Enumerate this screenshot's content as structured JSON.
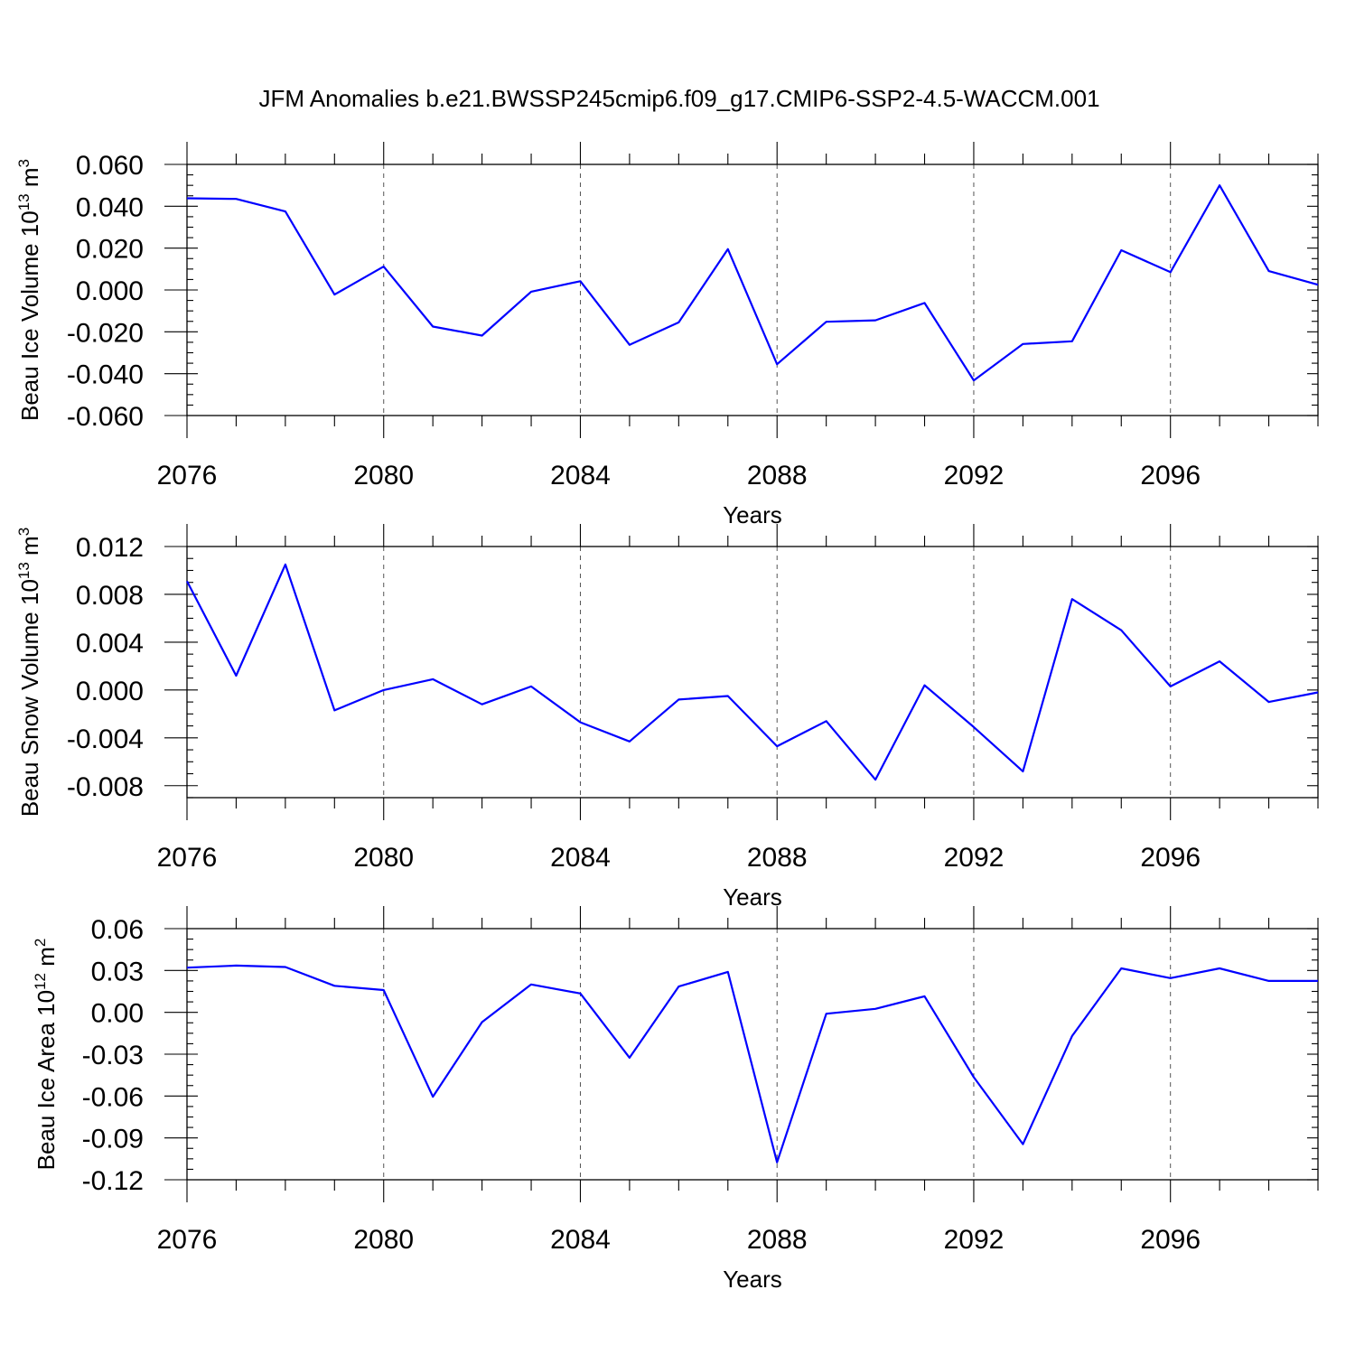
{
  "title": "JFM Anomalies b.e21.BWSSP245cmip6.f09_g17.CMIP6-SSP2-4.5-WACCM.001",
  "line_color": "#0000ff",
  "chart_data": [
    {
      "type": "line",
      "ylabel": "Beau Ice Volume",
      "ylabel_unit": {
        "base": "10",
        "exp": "13",
        "unit": "m",
        "unit_exp": "3"
      },
      "xlabel": "Years",
      "xlim": [
        2076,
        2099
      ],
      "ylim": [
        -0.06,
        0.06
      ],
      "x_ticks": [
        2076,
        2080,
        2084,
        2088,
        2092,
        2096
      ],
      "x_tick_labels": [
        "2076",
        "2080",
        "2084",
        "2088",
        "2092",
        "2096"
      ],
      "y_ticks": [
        -0.06,
        -0.04,
        -0.02,
        0.0,
        0.02,
        0.04,
        0.06
      ],
      "y_tick_labels": [
        "-0.060",
        "-0.040",
        "-0.020",
        "0.000",
        "0.020",
        "0.040",
        "0.060"
      ],
      "grid": "x-dashed",
      "series": [
        {
          "x": [
            2076,
            2077,
            2078,
            2079,
            2080,
            2081,
            2082,
            2083,
            2084,
            2085,
            2086,
            2087,
            2088,
            2089,
            2090,
            2091,
            2092,
            2093,
            2094,
            2095,
            2096,
            2097,
            2098,
            2099
          ],
          "values": [
            0.0438,
            0.0435,
            0.0375,
            -0.0022,
            0.0112,
            -0.0175,
            -0.0218,
            -0.0008,
            0.0042,
            -0.0262,
            -0.0155,
            0.0195,
            -0.0355,
            -0.0152,
            -0.0145,
            -0.0062,
            -0.0432,
            -0.0258,
            -0.0245,
            0.019,
            0.0085,
            0.05,
            0.009,
            0.0025
          ]
        }
      ]
    },
    {
      "type": "line",
      "ylabel": "Beau Snow Volume",
      "ylabel_unit": {
        "base": "10",
        "exp": "13",
        "unit": "m",
        "unit_exp": "3"
      },
      "xlabel": "Years",
      "xlim": [
        2076,
        2099
      ],
      "ylim": [
        -0.009,
        0.012
      ],
      "x_ticks": [
        2076,
        2080,
        2084,
        2088,
        2092,
        2096
      ],
      "x_tick_labels": [
        "2076",
        "2080",
        "2084",
        "2088",
        "2092",
        "2096"
      ],
      "y_ticks": [
        -0.008,
        -0.004,
        0.0,
        0.004,
        0.008,
        0.012
      ],
      "y_tick_labels": [
        "-0.008",
        "-0.004",
        "0.000",
        "0.004",
        "0.008",
        "0.012"
      ],
      "grid": "x-dashed",
      "series": [
        {
          "x": [
            2076,
            2077,
            2078,
            2079,
            2080,
            2081,
            2082,
            2083,
            2084,
            2085,
            2086,
            2087,
            2088,
            2089,
            2090,
            2091,
            2092,
            2093,
            2094,
            2095,
            2096,
            2097,
            2098,
            2099
          ],
          "values": [
            0.0091,
            0.0012,
            0.0105,
            -0.0017,
            -0.0,
            0.0009,
            -0.0012,
            0.0003,
            -0.0027,
            -0.0043,
            -0.0008,
            -0.0005,
            -0.0047,
            -0.0026,
            -0.0075,
            0.0004,
            -0.0031,
            -0.0068,
            0.0076,
            0.005,
            0.0003,
            0.0024,
            -0.001,
            -0.0002
          ]
        }
      ]
    },
    {
      "type": "line",
      "ylabel": "Beau Ice Area",
      "ylabel_unit": {
        "base": "10",
        "exp": "12",
        "unit": "m",
        "unit_exp": "2"
      },
      "xlabel": "Years",
      "xlim": [
        2076,
        2099
      ],
      "ylim": [
        -0.12,
        0.06
      ],
      "x_ticks": [
        2076,
        2080,
        2084,
        2088,
        2092,
        2096
      ],
      "x_tick_labels": [
        "2076",
        "2080",
        "2084",
        "2088",
        "2092",
        "2096"
      ],
      "y_ticks": [
        -0.12,
        -0.09,
        -0.06,
        -0.03,
        0.0,
        0.03,
        0.06
      ],
      "y_tick_labels": [
        "-0.12",
        "-0.09",
        "-0.06",
        "-0.03",
        "0.00",
        "0.03",
        "0.06"
      ],
      "grid": "x-dashed",
      "series": [
        {
          "x": [
            2076,
            2077,
            2078,
            2079,
            2080,
            2081,
            2082,
            2083,
            2084,
            2085,
            2086,
            2087,
            2088,
            2089,
            2090,
            2091,
            2092,
            2093,
            2094,
            2095,
            2096,
            2097,
            2098,
            2099
          ],
          "values": [
            0.032,
            0.0335,
            0.0325,
            0.019,
            0.016,
            -0.0605,
            -0.007,
            0.02,
            0.0135,
            -0.0325,
            0.0185,
            0.029,
            -0.1075,
            -0.001,
            0.0025,
            0.0115,
            -0.0465,
            -0.0945,
            -0.017,
            0.0315,
            0.0245,
            0.0315,
            0.0225,
            0.0225
          ]
        }
      ]
    }
  ]
}
